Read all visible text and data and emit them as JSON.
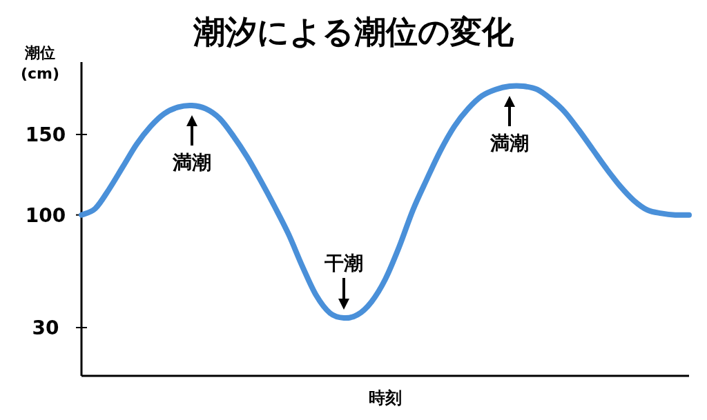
{
  "chart_data": {
    "type": "line",
    "title": "潮汐による潮位の変化",
    "xlabel": "時刻",
    "ylabel": "潮位 (cm)",
    "categories": [
      null,
      null,
      null,
      null,
      null,
      null,
      null,
      null,
      null,
      null,
      null,
      null,
      null,
      null,
      null,
      null,
      null,
      null,
      null,
      null,
      null,
      null,
      null,
      null,
      null,
      null,
      null,
      null,
      null,
      null,
      null,
      null,
      null,
      null,
      null,
      null,
      null,
      null,
      null,
      null,
      null,
      null,
      null,
      null,
      null
    ],
    "series": [
      {
        "color": "#4a90d9",
        "values": [
          100,
          104,
          116,
          130,
          144,
          155,
          163,
          167,
          168,
          166,
          160,
          149,
          136,
          121,
          105,
          88,
          68,
          50,
          39,
          36,
          38,
          46,
          60,
          80,
          103,
          122,
          140,
          155,
          166,
          174,
          178,
          180,
          180,
          178,
          172,
          164,
          153,
          141,
          129,
          118,
          109,
          103,
          101,
          100,
          100
        ]
      }
    ],
    "ylim": [
      0,
      195
    ],
    "yticks": [
      30,
      100,
      150
    ],
    "grid": false,
    "marker": "none",
    "line_style": "solid",
    "annotations": [
      {
        "text": "満潮",
        "y": 168
      },
      {
        "text": "干潮",
        "y": 36
      },
      {
        "text": "満潮",
        "y": 180
      }
    ]
  }
}
